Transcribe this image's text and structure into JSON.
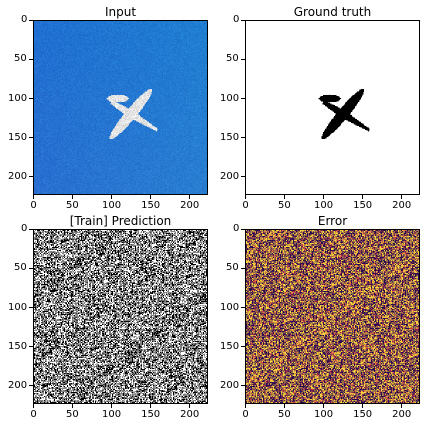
{
  "panels": [
    {
      "id": "input",
      "title": "Input"
    },
    {
      "id": "ground_truth",
      "title": "Ground truth"
    },
    {
      "id": "train_prediction",
      "title": "[Train] Prediction"
    },
    {
      "id": "error",
      "title": "Error"
    }
  ],
  "axes": {
    "x_tick_labels": [
      "0",
      "50",
      "100",
      "150",
      "200"
    ],
    "y_tick_labels": [
      "0",
      "50",
      "100",
      "150",
      "200"
    ]
  },
  "colors": {
    "sky_blue": "#1f6fd1",
    "mask_black": "#000000",
    "mask_white": "#ffffff",
    "error_dark": "#2a0b54",
    "error_red": "#c7374a",
    "error_yellow": "#fcd43a"
  }
}
